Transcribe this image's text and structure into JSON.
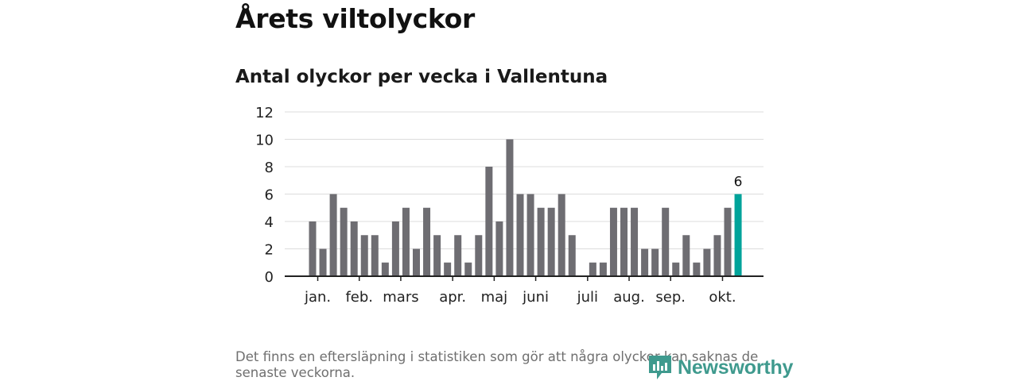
{
  "title": "Årets viltolyckor",
  "subtitle": "Antal olyckor per vecka i Vallentuna",
  "footnote": "Det finns en eftersläpning i statistiken som gör att några olyckor kan saknas de senaste veckorna.",
  "brand": {
    "name": "Newsworthy",
    "icon": "newsworthy-logo-icon"
  },
  "colors": {
    "bar": "#6e6d72",
    "highlight": "#00a39a",
    "grid": "#dcdcdc",
    "axis": "#222222"
  },
  "chart_data": {
    "type": "bar",
    "title": "Antal olyckor per vecka i Vallentuna",
    "xlabel": "",
    "ylabel": "",
    "ylim": [
      0,
      12
    ],
    "yticks": [
      0,
      2,
      4,
      6,
      8,
      10,
      12
    ],
    "grid": true,
    "weeks": [
      1,
      2,
      3,
      4,
      5,
      6,
      7,
      8,
      9,
      10,
      11,
      12,
      13,
      14,
      15,
      16,
      17,
      18,
      19,
      20,
      21,
      22,
      23,
      24,
      25,
      26,
      27,
      28,
      29,
      30,
      31,
      32,
      33,
      34,
      35,
      36,
      37,
      38,
      39,
      40,
      41,
      42
    ],
    "values": [
      4,
      2,
      6,
      5,
      4,
      3,
      3,
      1,
      4,
      5,
      2,
      5,
      3,
      1,
      3,
      1,
      3,
      8,
      4,
      10,
      6,
      6,
      5,
      5,
      6,
      3,
      0,
      1,
      1,
      5,
      5,
      5,
      2,
      2,
      5,
      1,
      3,
      1,
      2,
      3,
      5,
      6
    ],
    "highlight_index": 41,
    "highlight_label": "6",
    "month_ticks": [
      {
        "label": "jan.",
        "week": 1.5
      },
      {
        "label": "feb.",
        "week": 5.5
      },
      {
        "label": "mars",
        "week": 9.5
      },
      {
        "label": "apr.",
        "week": 14.5
      },
      {
        "label": "maj",
        "week": 18.5
      },
      {
        "label": "juni",
        "week": 22.5
      },
      {
        "label": "juli",
        "week": 27.5
      },
      {
        "label": "aug.",
        "week": 31.5
      },
      {
        "label": "sep.",
        "week": 35.5
      },
      {
        "label": "okt.",
        "week": 40.5
      }
    ]
  }
}
